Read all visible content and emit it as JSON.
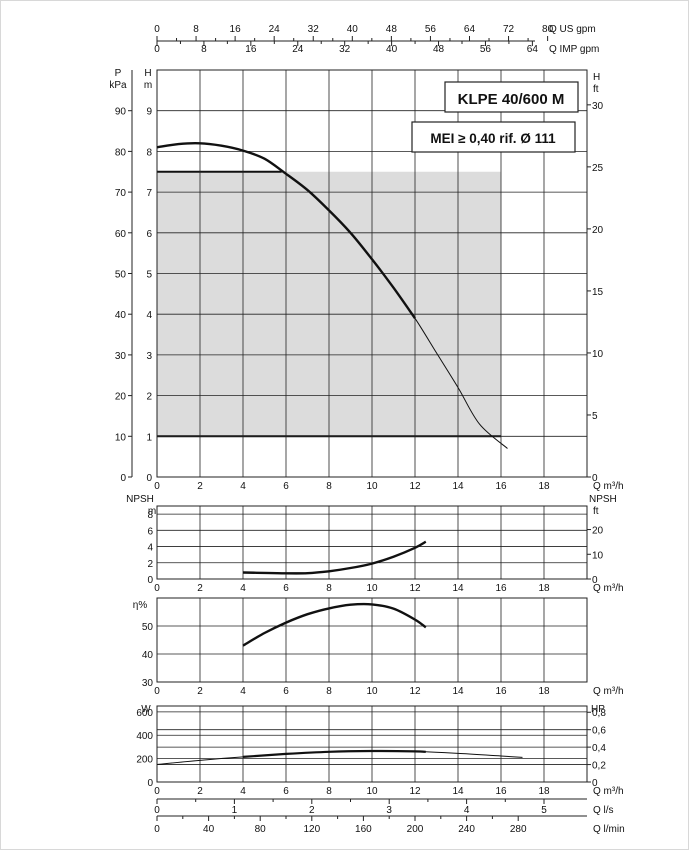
{
  "chart_data": [
    {
      "type": "line",
      "title": "KLPE 40/600 M",
      "subtitle": "MEI ≥ 0,40 rif. Ø 111",
      "xlabel": "Q m³/h",
      "ylabel": "H m",
      "xlim": [
        0,
        20
      ],
      "ylim": [
        0,
        10
      ],
      "x_ticks": [
        "0",
        "2",
        "4",
        "6",
        "8",
        "10",
        "12",
        "14",
        "16",
        "18"
      ],
      "y_ticks_left_m": [
        "0",
        "1",
        "2",
        "3",
        "4",
        "5",
        "6",
        "7",
        "8",
        "9"
      ],
      "y_ticks_left_kpa": [
        "0",
        "10",
        "20",
        "30",
        "40",
        "50",
        "60",
        "70",
        "80",
        "90"
      ],
      "y_ticks_right_ft": [
        "0",
        "5",
        "10",
        "15",
        "20",
        "25",
        "30"
      ],
      "left_kpa_label": [
        "P",
        "kPa"
      ],
      "left_m_label": [
        "H",
        "m"
      ],
      "right_label": [
        "H",
        "ft"
      ],
      "top_axis_us": {
        "label": "Q US gpm",
        "ticks": [
          "0",
          "8",
          "16",
          "24",
          "32",
          "40",
          "48",
          "56",
          "64",
          "72",
          "80"
        ]
      },
      "top_axis_imp": {
        "label": "Q IMP gpm",
        "ticks": [
          "0",
          "8",
          "16",
          "24",
          "32",
          "40",
          "48",
          "56",
          "64"
        ]
      },
      "series": [
        {
          "x": [
            0,
            1,
            2,
            3,
            4,
            5,
            6,
            7,
            8,
            9,
            10,
            11,
            12,
            13,
            14,
            15,
            16.3
          ],
          "y": [
            8.1,
            8.18,
            8.2,
            8.14,
            8.02,
            7.82,
            7.45,
            7.05,
            6.55,
            6.0,
            5.35,
            4.65,
            3.9,
            3.05,
            2.2,
            1.3,
            0.7
          ]
        }
      ],
      "operating_region": {
        "q_max_band": [
          0,
          16
        ],
        "h_min": 1,
        "h_max": 7.5
      }
    },
    {
      "type": "line",
      "ylabel": "NPSH m",
      "right_label": "NPSH ft",
      "xlabel": "Q m³/h",
      "xlim": [
        0,
        20
      ],
      "ylim": [
        0,
        8
      ],
      "x_ticks": [
        "0",
        "2",
        "4",
        "6",
        "8",
        "10",
        "12",
        "14",
        "16",
        "18"
      ],
      "y_ticks_left": [
        "0",
        "2",
        "4",
        "6",
        "8"
      ],
      "y_ticks_right": [
        "0",
        "10",
        "20"
      ],
      "series": [
        {
          "x": [
            4,
            5,
            6,
            7,
            8,
            9,
            10,
            11,
            12,
            12.5
          ],
          "y": [
            0.8,
            0.75,
            0.7,
            0.72,
            0.95,
            1.35,
            1.9,
            2.75,
            3.85,
            4.6
          ]
        }
      ]
    },
    {
      "type": "line",
      "ylabel": "η%",
      "xlabel": "Q m³/h",
      "xlim": [
        0,
        20
      ],
      "ylim": [
        30,
        60
      ],
      "x_ticks": [
        "0",
        "2",
        "4",
        "6",
        "8",
        "10",
        "12",
        "14",
        "16",
        "18"
      ],
      "y_ticks_left": [
        "30",
        "40",
        "50"
      ],
      "series": [
        {
          "x": [
            4,
            5,
            6,
            7,
            8,
            9,
            10,
            11,
            12,
            12.5
          ],
          "y": [
            43,
            47.5,
            51.2,
            54.2,
            56.3,
            57.6,
            57.7,
            56.2,
            52.3,
            49.5
          ]
        }
      ]
    },
    {
      "type": "line",
      "ylabel": "W",
      "right_label": "HP",
      "xlabel": "Q m³/h",
      "xlim": [
        0,
        20
      ],
      "ylim": [
        0,
        650
      ],
      "x_ticks": [
        "0",
        "2",
        "4",
        "6",
        "8",
        "10",
        "12",
        "14",
        "16",
        "18"
      ],
      "y_ticks_left": [
        "0",
        "200",
        "400",
        "600"
      ],
      "y_ticks_right": [
        "0",
        "0,2",
        "0,4",
        "0,6",
        "0,8"
      ],
      "ls_axis": {
        "label": "Q l/s",
        "ticks": [
          "0",
          "1",
          "2",
          "3",
          "4",
          "5"
        ]
      },
      "lmin_axis": {
        "label": "Q l/min",
        "ticks": [
          "0",
          "40",
          "80",
          "120",
          "160",
          "200",
          "240",
          "280"
        ]
      },
      "series": [
        {
          "x": [
            0,
            2,
            4,
            6,
            8,
            10,
            12,
            14,
            16,
            17
          ],
          "y": [
            150,
            185,
            215,
            240,
            258,
            265,
            262,
            245,
            222,
            210
          ]
        },
        {
          "x": [
            4,
            6,
            8,
            10,
            12,
            12.5
          ],
          "y": [
            215,
            240,
            258,
            265,
            262,
            258
          ]
        }
      ]
    }
  ]
}
